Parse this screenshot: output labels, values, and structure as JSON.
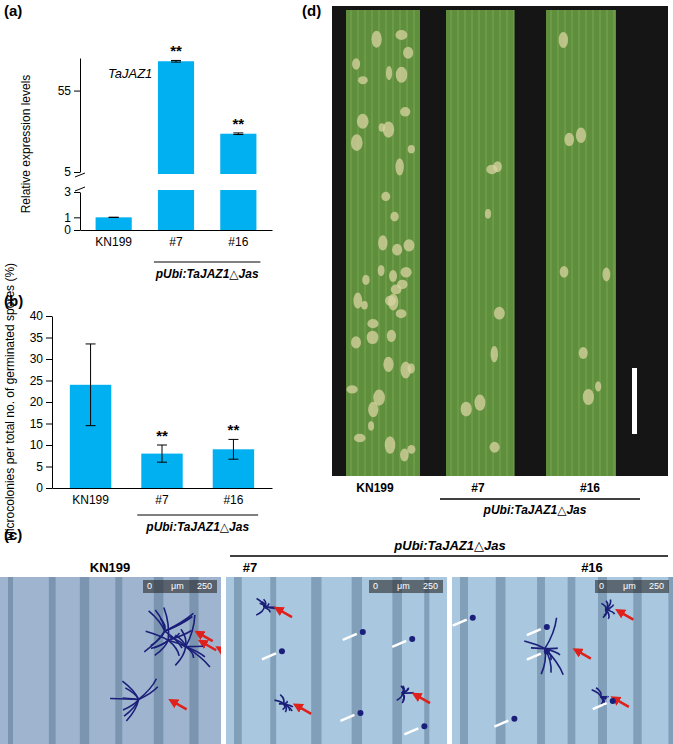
{
  "panel_labels": [
    "(a)",
    "(b)",
    "(c)",
    "(d)"
  ],
  "chart_data": [
    {
      "type": "bar",
      "title": "TaJAZ1",
      "y_label": "Relative expression levels",
      "categories": [
        "KN199",
        "#7",
        "#16"
      ],
      "values": [
        1,
        73,
        28.5
      ],
      "errors": [
        0,
        0.5,
        0.5
      ],
      "annotations": [
        null,
        "**",
        "**"
      ],
      "group_label": "pUbi:TaJAZ1△Jas",
      "color": "#00b0f0",
      "ylim": [
        0,
        75
      ],
      "y_break": [
        3,
        5
      ],
      "yticks": [
        0,
        1,
        3,
        5,
        55
      ]
    },
    {
      "type": "bar",
      "y_label": "Microcolonies per total no. of germinated spores (%)",
      "categories": [
        "KN199",
        "#7",
        "#16"
      ],
      "values": [
        24,
        8,
        9
      ],
      "errors": [
        9.5,
        2,
        2.3
      ],
      "annotations": [
        null,
        "**",
        "**"
      ],
      "group_label": "pUbi:TaJAZ1△Jas",
      "color": "#00b0f0",
      "ylim": [
        0,
        40
      ],
      "yticks": [
        0,
        5,
        10,
        15,
        20,
        25,
        30,
        35,
        40
      ]
    }
  ],
  "micrographs": {
    "group_label": "pUbi:TaJAZ1△Jas",
    "images": [
      {
        "label": "KN199",
        "scale_start": 0,
        "scale_unit": "μm",
        "scale_end": 250
      },
      {
        "label": "#7",
        "scale_start": 0,
        "scale_unit": "μm",
        "scale_end": 250
      },
      {
        "label": "#16",
        "scale_start": 0,
        "scale_unit": "μm",
        "scale_end": 250
      }
    ]
  },
  "leaves": {
    "group_label": "pUbi:TaJAZ1△Jas",
    "labels": [
      "KN199",
      "#7",
      "#16"
    ]
  }
}
